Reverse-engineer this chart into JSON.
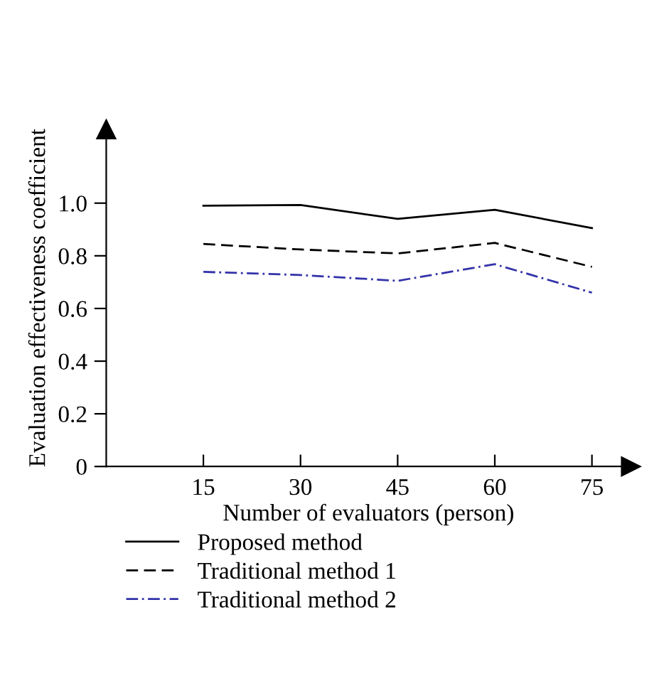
{
  "chart_data": {
    "type": "line",
    "xlabel": "Number of evaluators (person)",
    "ylabel": "Evaluation effectiveness coefficient",
    "x": [
      15,
      30,
      45,
      60,
      75
    ],
    "series": [
      {
        "name": "Proposed method",
        "color": "#000000",
        "line_style": "solid",
        "values": [
          0.99,
          0.993,
          0.94,
          0.975,
          0.905
        ]
      },
      {
        "name": "Traditional method 1",
        "color": "#000000",
        "line_style": "dashed",
        "values": [
          0.845,
          0.824,
          0.809,
          0.849,
          0.758
        ]
      },
      {
        "name": "Traditional method 2",
        "color": "#3333aa",
        "line_style": "dashdot",
        "values": [
          0.739,
          0.727,
          0.705,
          0.768,
          0.66
        ]
      }
    ],
    "xlim": [
      0,
      81
    ],
    "ylim": [
      0,
      1.28
    ],
    "xticks": [
      15,
      30,
      45,
      60,
      75
    ],
    "yticks": [
      0,
      0.2,
      0.4,
      0.6,
      0.8,
      {
        "value": 1,
        "label": "1.0"
      }
    ],
    "grid": false,
    "legend": "bottom",
    "marker": "none"
  }
}
